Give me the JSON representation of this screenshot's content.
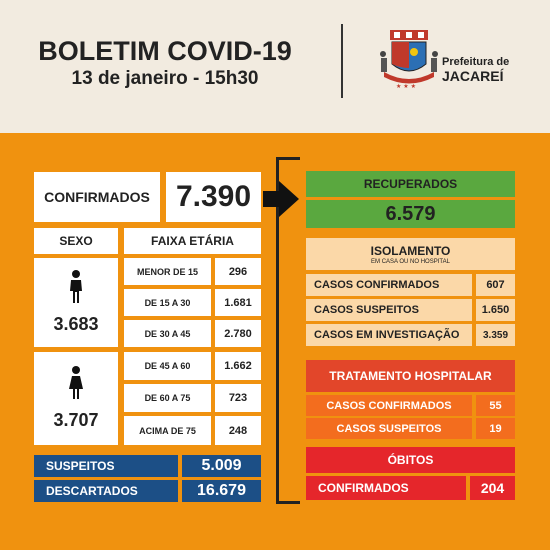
{
  "header": {
    "title": "BOLETIM COVID-19",
    "date": "13 de janeiro - 15h30",
    "logo_line1": "Prefeitura de",
    "logo_line2": "JACAREÍ"
  },
  "confirmados": {
    "label": "CONFIRMADOS",
    "value": "7.390"
  },
  "sexo": {
    "label": "SEXO",
    "male_value": "3.683",
    "female_value": "3.707"
  },
  "faixa_etaria": {
    "label": "FAIXA ETÁRIA",
    "rows": [
      {
        "label": "MENOR DE 15",
        "value": "296"
      },
      {
        "label": "DE 15 A 30",
        "value": "1.681"
      },
      {
        "label": "DE 30 A 45",
        "value": "2.780"
      },
      {
        "label": "DE 45 A 60",
        "value": "1.662"
      },
      {
        "label": "DE 60 A 75",
        "value": "723"
      },
      {
        "label": "ACIMA DE 75",
        "value": "248"
      }
    ]
  },
  "suspeitos": {
    "label": "SUSPEITOS",
    "value": "5.009"
  },
  "descartados": {
    "label": "DESCARTADOS",
    "value": "16.679"
  },
  "recuperados": {
    "label": "RECUPERADOS",
    "value": "6.579"
  },
  "isolamento": {
    "title": "ISOLAMENTO",
    "subtitle": "EM CASA OU NO HOSPITAL",
    "rows": [
      {
        "label": "CASOS CONFIRMADOS",
        "value": "607"
      },
      {
        "label": "CASOS SUSPEITOS",
        "value": "1.650"
      },
      {
        "label": "CASOS EM INVESTIGAÇÃO",
        "value": "3.359"
      }
    ]
  },
  "tratamento": {
    "title": "TRATAMENTO HOSPITALAR",
    "rows": [
      {
        "label": "CASOS CONFIRMADOS",
        "value": "55"
      },
      {
        "label": "CASOS SUSPEITOS",
        "value": "19"
      }
    ]
  },
  "obitos": {
    "title": "ÓBITOS",
    "label": "CONFIRMADOS",
    "value": "204"
  },
  "colors": {
    "orange_bg": "#f0920f",
    "navy": "#1c4f86",
    "green": "#5aa83f",
    "red": "#e5262b"
  }
}
